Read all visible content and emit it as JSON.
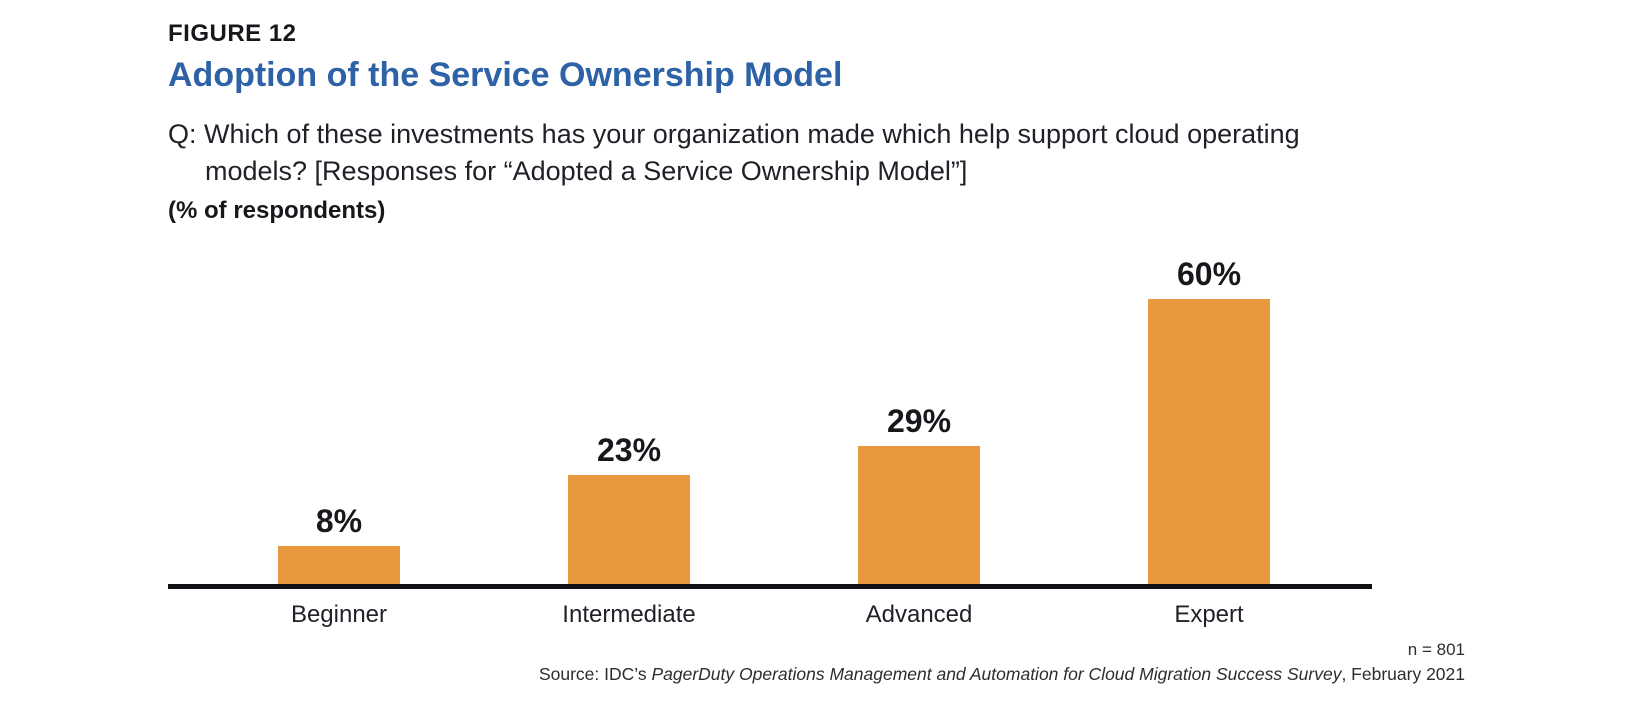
{
  "figure_label": "FIGURE 12",
  "title": "Adoption of the Service Ownership Model",
  "question": {
    "prefix": "Q:",
    "text": "Which of these investments has your organization made which help support cloud operating models? [Responses for “Adopted a Service Ownership Model”]"
  },
  "units_label": "(% of respondents)",
  "footer": {
    "sample_size": "n = 801",
    "source_prefix": "Source: IDC’s ",
    "source_italic": "PagerDuty Operations Management and Automation for Cloud Migration Success Survey",
    "source_suffix": ", February 2021"
  },
  "colors": {
    "bar": "#E8993E",
    "title": "#2D63A6",
    "text": "#1E2127",
    "axis": "#101216"
  },
  "chart_data": {
    "type": "bar",
    "categories": [
      "Beginner",
      "Intermediate",
      "Advanced",
      "Expert"
    ],
    "values": [
      8,
      23,
      29,
      60
    ],
    "value_labels": [
      "8%",
      "23%",
      "29%",
      "60%"
    ],
    "title": "Adoption of the Service Ownership Model",
    "xlabel": "",
    "ylabel": "% of respondents",
    "ylim": [
      0,
      63
    ],
    "grid": false,
    "legend": false,
    "bar_color": "#E8993E",
    "value_labels_position": "above-bars"
  }
}
